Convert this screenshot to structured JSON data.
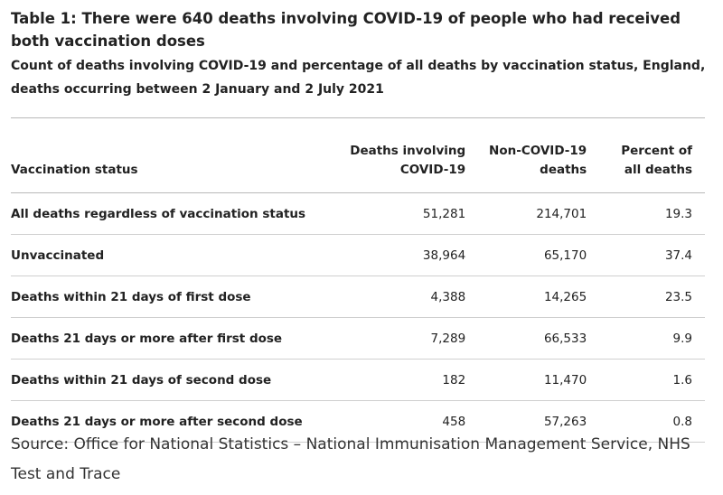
{
  "header": {
    "title": "Table 1: There were 640 deaths involving COVID-19 of people who had received both vaccination doses",
    "subtitle": "Count of deaths involving COVID-19 and percentage of all deaths by vaccination status, England, deaths occurring between 2 January and 2 July 2021"
  },
  "table": {
    "columns": {
      "status": "Vaccination status",
      "covid": "Deaths involving COVID-19",
      "non_covid": "Non-COVID-19 deaths",
      "percent": "Percent of all deaths"
    },
    "rows": [
      {
        "status": "All deaths regardless of vaccination status",
        "covid": "51,281",
        "non_covid": "214,701",
        "percent": "19.3"
      },
      {
        "status": "Unvaccinated",
        "covid": "38,964",
        "non_covid": "65,170",
        "percent": "37.4"
      },
      {
        "status": "Deaths within 21 days of first dose",
        "covid": "4,388",
        "non_covid": "14,265",
        "percent": "23.5"
      },
      {
        "status": "Deaths 21 days or more after first dose",
        "covid": "7,289",
        "non_covid": "66,533",
        "percent": "9.9"
      },
      {
        "status": "Deaths within 21 days of second dose",
        "covid": "182",
        "non_covid": "11,470",
        "percent": "1.6"
      },
      {
        "status": "Deaths 21 days or more after second dose",
        "covid": "458",
        "non_covid": "57,263",
        "percent": "0.8"
      }
    ]
  },
  "footer": {
    "source": "Source: Office for National Statistics – National Immunisation Management Service, NHS Test and Trace"
  }
}
